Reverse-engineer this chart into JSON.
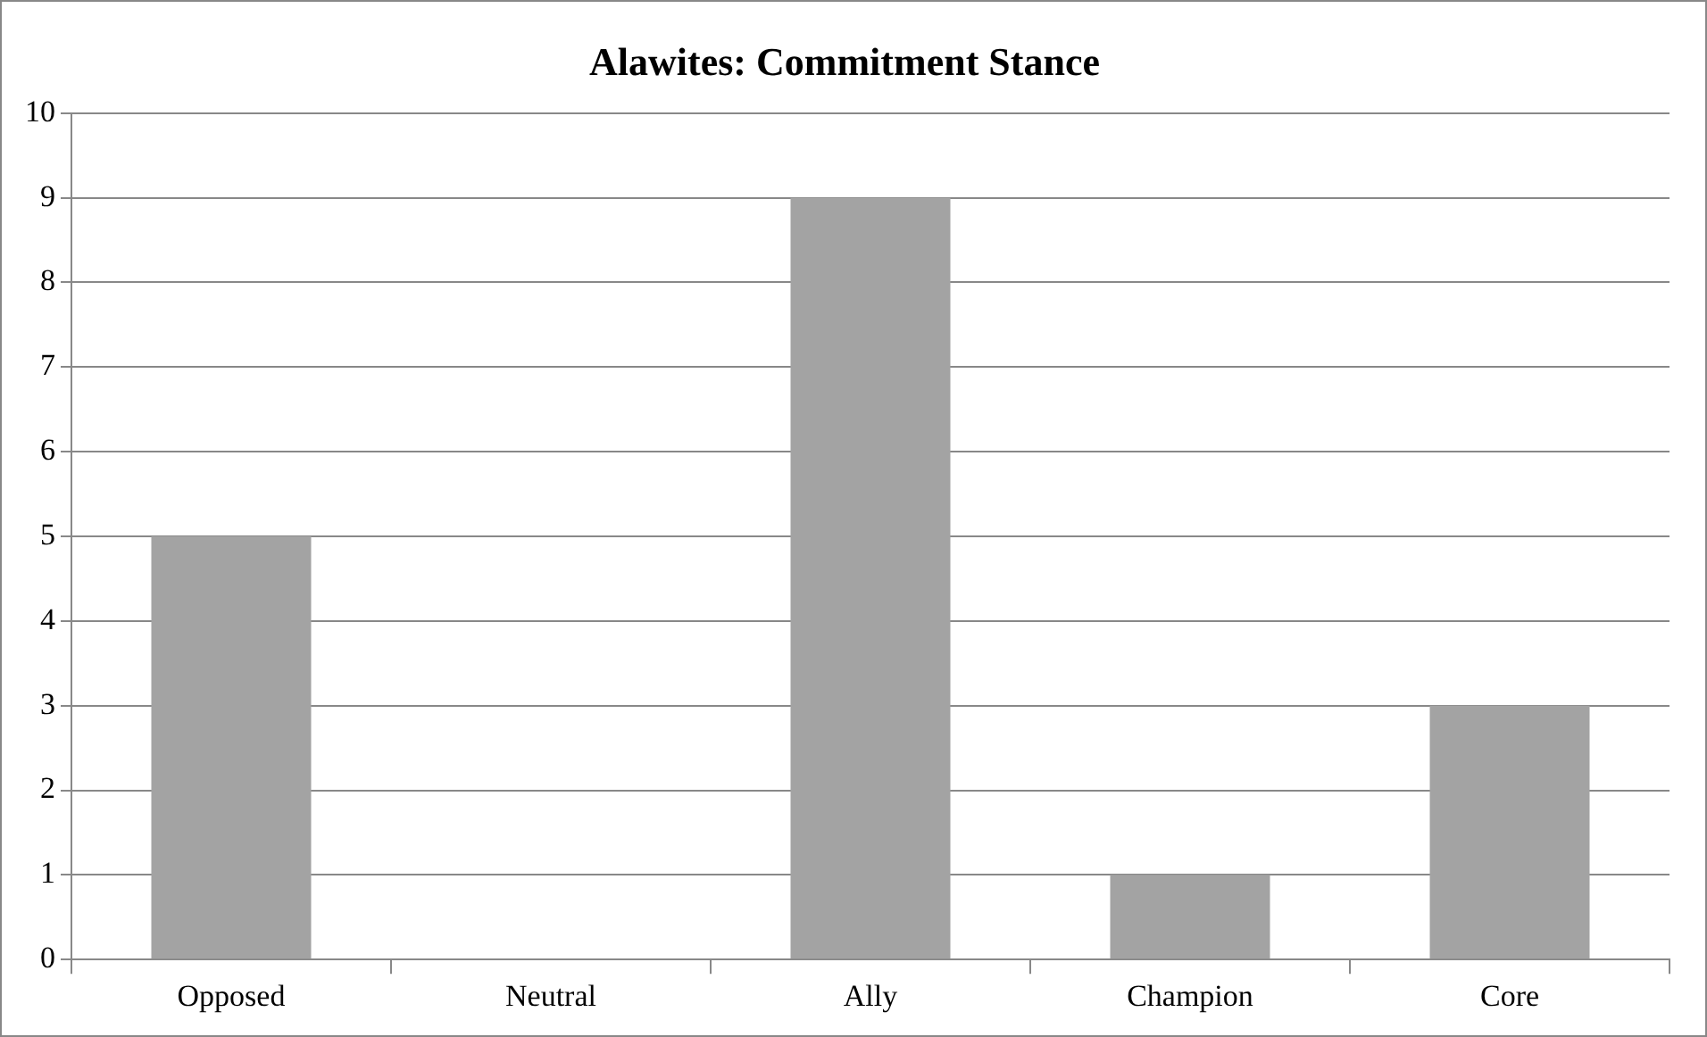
{
  "chart_data": {
    "type": "bar",
    "title": "Alawites: Commitment Stance",
    "categories": [
      "Opposed",
      "Neutral",
      "Ally",
      "Champion",
      "Core"
    ],
    "values": [
      5,
      0,
      9,
      1,
      3
    ],
    "color": "#a3a3a3",
    "ylim": [
      0,
      10
    ],
    "yticks": [
      0,
      1,
      2,
      3,
      4,
      5,
      6,
      7,
      8,
      9,
      10
    ],
    "grid": "y"
  }
}
